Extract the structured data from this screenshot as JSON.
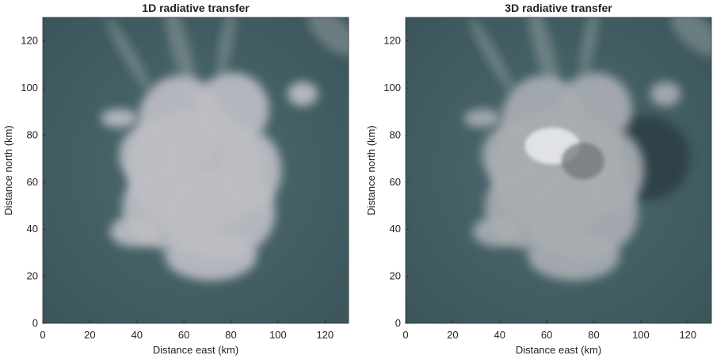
{
  "chart_data": [
    {
      "type": "image",
      "title": "1D radiative transfer",
      "xlabel": "Distance east (km)",
      "ylabel": "Distance north (km)",
      "xlim": [
        0,
        130
      ],
      "ylim": [
        0,
        130
      ],
      "xticks": [
        0,
        20,
        40,
        60,
        80,
        100,
        120
      ],
      "yticks": [
        0,
        20,
        40,
        60,
        80,
        100,
        120
      ]
    },
    {
      "type": "image",
      "title": "3D radiative transfer",
      "xlabel": "Distance east (km)",
      "ylabel": "Distance north (km)",
      "xlim": [
        0,
        130
      ],
      "ylim": [
        0,
        130
      ],
      "xticks": [
        0,
        20,
        40,
        60,
        80,
        100,
        120
      ],
      "yticks": [
        0,
        20,
        40,
        60,
        80,
        100,
        120
      ]
    }
  ]
}
